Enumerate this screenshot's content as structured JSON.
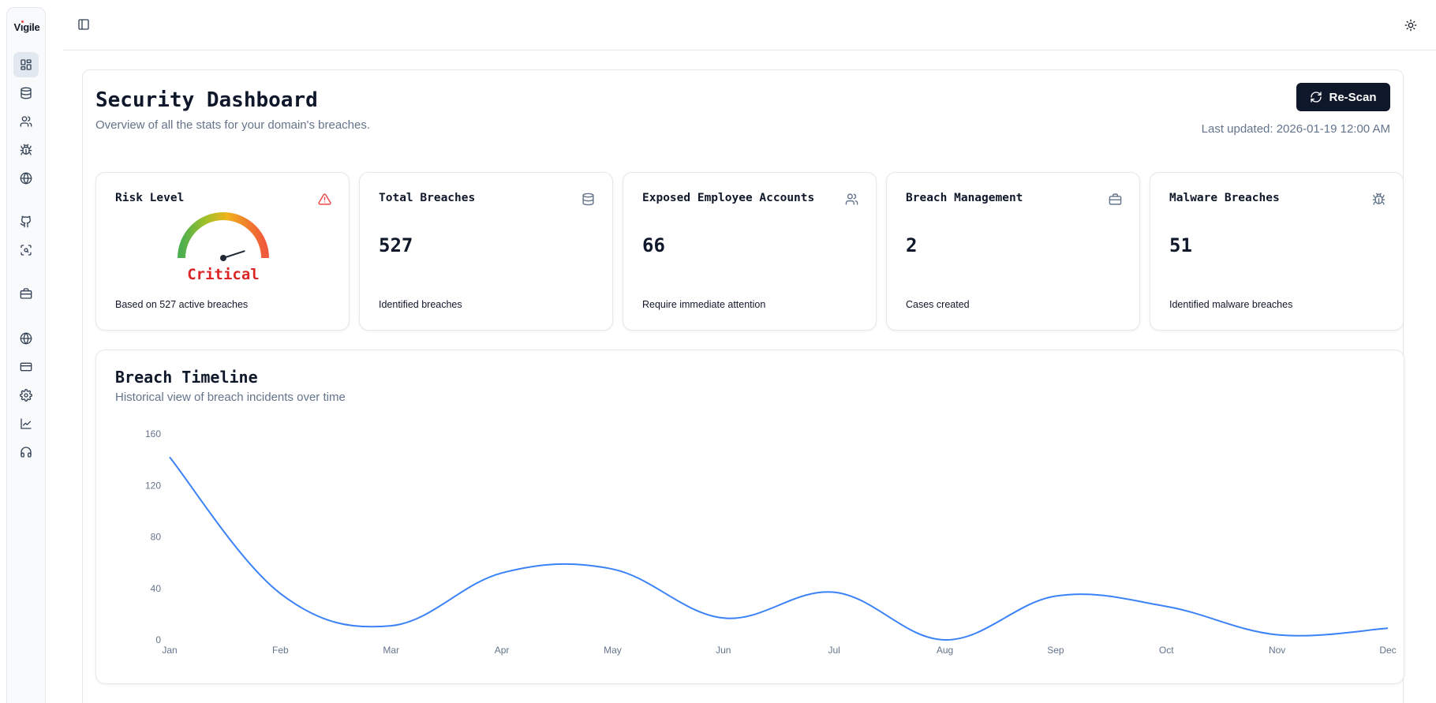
{
  "app": {
    "logo": "Vigile"
  },
  "sidebar": {
    "items": [
      {
        "name": "dashboard",
        "icon": "layout-dashboard-icon",
        "active": true
      },
      {
        "name": "database",
        "icon": "database-icon"
      },
      {
        "name": "users",
        "icon": "users-icon"
      },
      {
        "name": "malware",
        "icon": "bug-icon"
      },
      {
        "name": "domains",
        "icon": "globe-icon"
      },
      {
        "name": "github",
        "icon": "github-icon"
      },
      {
        "name": "scan",
        "icon": "scan-search-icon"
      },
      {
        "name": "cases",
        "icon": "briefcase-icon"
      },
      {
        "name": "web",
        "icon": "globe-icon"
      },
      {
        "name": "billing",
        "icon": "credit-card-icon"
      },
      {
        "name": "settings",
        "icon": "gear-icon"
      },
      {
        "name": "analytics",
        "icon": "chart-line-icon"
      },
      {
        "name": "support",
        "icon": "headphones-icon"
      }
    ]
  },
  "header": {
    "title": "Security Dashboard",
    "subtitle": "Overview of all the stats for your domain's breaches.",
    "rescan_label": "Re-Scan",
    "last_updated": "Last updated: 2026-01-19 12:00 AM"
  },
  "cards": [
    {
      "title": "Risk Level",
      "icon": "alert-triangle-icon",
      "value": "Critical",
      "description": "Based on 527 active breaches",
      "gauge_level": 0.9
    },
    {
      "title": "Total Breaches",
      "icon": "database-icon",
      "value": "527",
      "description": "Identified breaches"
    },
    {
      "title": "Exposed Employee Accounts",
      "icon": "users-icon",
      "value": "66",
      "description": "Require immediate attention"
    },
    {
      "title": "Breach Management",
      "icon": "briefcase-icon",
      "value": "2",
      "description": "Cases created"
    },
    {
      "title": "Malware Breaches",
      "icon": "bug-icon",
      "value": "51",
      "description": "Identified malware breaches"
    }
  ],
  "colors": {
    "accent": "#3b82f6",
    "critical": "#dc2626",
    "button_bg": "#0f172a"
  },
  "timeline": {
    "title": "Breach Timeline",
    "subtitle": "Historical view of breach incidents over time"
  },
  "chart_data": {
    "type": "line",
    "title": "Breach Timeline",
    "categories": [
      "Jan",
      "Feb",
      "Mar",
      "Apr",
      "May",
      "Jun",
      "Jul",
      "Aug",
      "Sep",
      "Oct",
      "Nov",
      "Dec"
    ],
    "series": [
      {
        "values": [
          142,
          36,
          11,
          52,
          55,
          17,
          37,
          0,
          34,
          26,
          4,
          9
        ]
      }
    ],
    "yticks": [
      0,
      40,
      80,
      120,
      160
    ],
    "ylim": [
      0,
      160
    ],
    "xlabel": "",
    "ylabel": "",
    "grid": false,
    "legend": "none"
  }
}
